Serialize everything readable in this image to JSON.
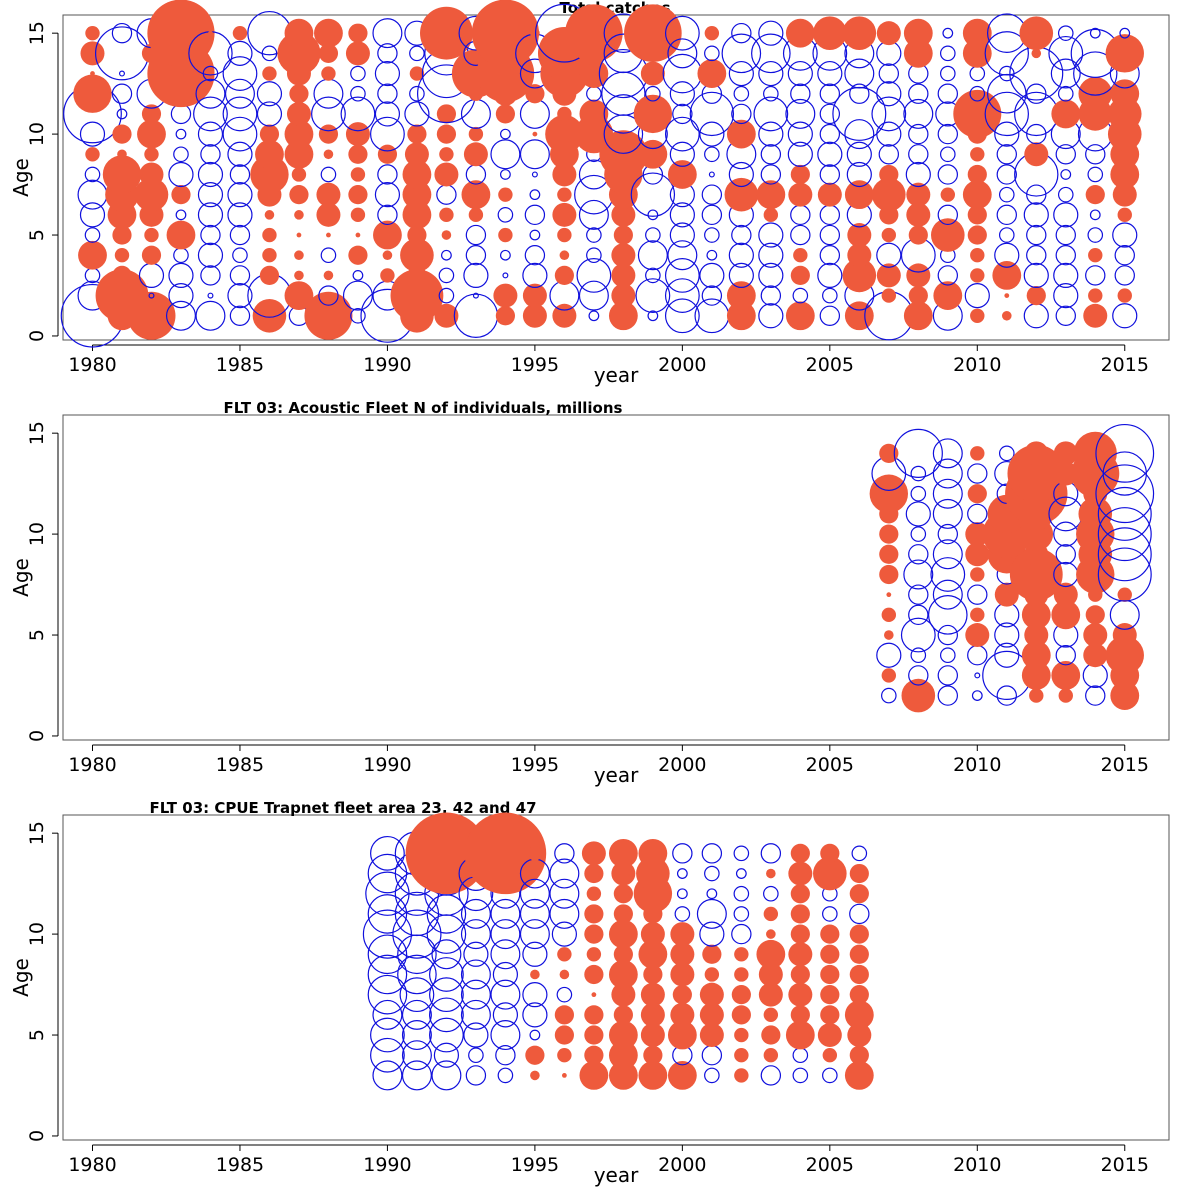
{
  "chart_data": [
    {
      "type": "bubble",
      "title": "Total catches",
      "xlabel": "year",
      "ylabel": "Age",
      "xlim": [
        1979,
        2016.5
      ],
      "ylim": [
        -0.2,
        15.9
      ],
      "xticks": [
        1980,
        1985,
        1990,
        1995,
        2000,
        2005,
        2010,
        2015
      ],
      "yticks": [
        0,
        5,
        10,
        15
      ],
      "colors": {
        "positive": "#ee5a3c",
        "negative": "#1010dd"
      },
      "encoding": "filled = positive residual, open = negative residual; size proportional to magnitude",
      "years": [
        1980,
        1981,
        1982,
        1983,
        1984,
        1985,
        1986,
        1987,
        1988,
        1989,
        1990,
        1991,
        1992,
        1993,
        1994,
        1995,
        1996,
        1997,
        1998,
        1999,
        2000,
        2001,
        2002,
        2003,
        2004,
        2005,
        2006,
        2007,
        2008,
        2009,
        2010,
        2011,
        2012,
        2013,
        2014,
        2015
      ],
      "ages": [
        1,
        2,
        3,
        4,
        5,
        6,
        7,
        8,
        9,
        10,
        11,
        12,
        13,
        14,
        15
      ],
      "residuals": [
        [
          -1.3,
          -0.6,
          -0.3,
          0.6,
          -0.3,
          -0.5,
          -0.6,
          -0.3,
          0.3,
          -0.5,
          -1.2,
          0.8,
          0.1,
          0.5,
          0.3
        ],
        [
          0.6,
          1.1,
          0.4,
          0.3,
          0.4,
          0.6,
          0.7,
          0.8,
          0.2,
          0.4,
          -0.2,
          -0.4,
          -0.1,
          -1.1,
          -0.4
        ],
        [
          1.0,
          -0.1,
          -0.5,
          0.4,
          0.3,
          0.5,
          0.7,
          0.5,
          0.3,
          0.6,
          0.4,
          -0.6,
          -0.1,
          0.4,
          -0.6
        ],
        [
          -0.6,
          -0.5,
          -0.5,
          -0.3,
          0.6,
          -0.2,
          0.4,
          -0.5,
          -0.3,
          -0.2,
          -0.4,
          -0.3,
          1.4,
          -0.3,
          1.4
        ],
        [
          -0.6,
          -0.1,
          -0.4,
          -0.5,
          -0.4,
          -0.5,
          -0.5,
          -0.5,
          -0.4,
          -0.5,
          -0.7,
          -0.6,
          -0.3,
          -0.9,
          0.1
        ],
        [
          -0.4,
          -0.5,
          -0.4,
          -0.3,
          -0.4,
          -0.5,
          -0.5,
          -0.4,
          -0.5,
          -0.7,
          -0.7,
          -0.6,
          -0.7,
          -0.5,
          0.3
        ],
        [
          0.7,
          -0.9,
          0.4,
          0.3,
          0.3,
          0.2,
          0.5,
          0.8,
          0.6,
          0.4,
          -0.5,
          -0.5,
          0.3,
          -0.3,
          -0.9
        ],
        [
          -0.4,
          0.6,
          0.2,
          0.2,
          0.1,
          0.2,
          0.4,
          0.3,
          0.6,
          0.6,
          0.5,
          0.4,
          0.5,
          0.9,
          0.6
        ],
        [
          1.0,
          -0.4,
          0.2,
          -0.3,
          0.1,
          0.5,
          0.5,
          -0.3,
          0.2,
          0.4,
          -0.7,
          -0.6,
          0.3,
          0.4,
          0.6
        ],
        [
          -0.3,
          -0.6,
          -0.2,
          0.4,
          0.1,
          0.3,
          0.4,
          0.3,
          0.4,
          0.5,
          -0.7,
          -0.3,
          -0.3,
          0.5,
          0.4
        ],
        [
          -1.1,
          -0.6,
          0.3,
          0.2,
          0.6,
          -0.4,
          -0.5,
          -0.4,
          0.4,
          -0.7,
          -0.5,
          -0.4,
          -0.5,
          -0.4,
          -0.6
        ],
        [
          0.7,
          1.1,
          0.4,
          0.7,
          0.4,
          0.6,
          0.6,
          0.6,
          0.5,
          0.4,
          -0.5,
          -0.3,
          0.3,
          -0.3,
          -0.5
        ],
        [
          0.5,
          -0.3,
          -0.3,
          -0.2,
          0.2,
          0.3,
          -0.4,
          0.5,
          0.3,
          0.4,
          0.4,
          -1.2,
          -1.0,
          -0.9,
          1.1
        ],
        [
          -0.9,
          -0.1,
          -0.5,
          -0.4,
          -0.4,
          0.3,
          0.6,
          -0.4,
          0.5,
          0.3,
          -0.6,
          0.3,
          1.0,
          -0.5,
          -0.7
        ],
        [
          0.4,
          0.5,
          -0.1,
          -0.2,
          0.3,
          -0.3,
          0.3,
          -0.2,
          -0.6,
          -0.2,
          0.4,
          0.5,
          1.2,
          -0.5,
          1.4
        ],
        [
          0.5,
          0.5,
          -0.5,
          -0.4,
          -0.2,
          -0.4,
          -0.2,
          -0.1,
          -0.6,
          0.1,
          -0.6,
          0.4,
          -0.6,
          -0.8,
          0.2
        ],
        [
          0.5,
          -0.6,
          0.4,
          0.2,
          0.3,
          0.5,
          0.3,
          0.5,
          0.6,
          0.8,
          0.3,
          0.5,
          1.0,
          1.1,
          -1.2
        ],
        [
          -0.2,
          -0.6,
          -0.7,
          -0.3,
          -0.3,
          -0.6,
          -0.8,
          -0.6,
          -0.3,
          0.8,
          0.6,
          -0.3,
          0.6,
          0.5,
          1.2
        ],
        [
          0.6,
          0.5,
          0.5,
          0.5,
          0.4,
          0.5,
          0.6,
          0.8,
          1.0,
          -0.8,
          -0.8,
          -0.9,
          -1.0,
          -0.8,
          -0.8
        ],
        [
          -0.2,
          -0.7,
          -0.3,
          -0.6,
          -0.3,
          -0.2,
          -0.9,
          -0.4,
          0.6,
          -0.6,
          0.8,
          -0.3,
          0.5,
          0.2,
          1.2
        ],
        [
          -0.7,
          -0.7,
          -0.7,
          -0.6,
          -0.5,
          -0.5,
          -0.5,
          0.6,
          -0.5,
          -0.7,
          -0.4,
          -0.5,
          -0.8,
          -0.6,
          -0.7
        ],
        [
          -0.7,
          -0.4,
          -0.5,
          -0.2,
          -0.3,
          -0.4,
          -0.4,
          -0.1,
          -0.3,
          -0.5,
          -0.9,
          -0.4,
          0.6,
          -0.3,
          0.3
        ],
        [
          0.6,
          0.6,
          -0.5,
          -0.5,
          -0.4,
          -0.5,
          0.7,
          -0.5,
          -0.6,
          0.6,
          -0.4,
          -0.3,
          -0.5,
          -0.8,
          -0.4
        ],
        [
          -0.5,
          -0.4,
          -0.5,
          -0.5,
          -0.5,
          0.3,
          0.6,
          -0.4,
          -0.4,
          -0.5,
          -0.7,
          -0.3,
          -0.5,
          -0.8,
          -0.5
        ],
        [
          0.6,
          -0.3,
          0.4,
          0.3,
          -0.4,
          -0.4,
          0.5,
          0.4,
          -0.5,
          -0.5,
          -0.6,
          -0.4,
          -0.5,
          -0.7,
          0.6
        ],
        [
          -0.4,
          -0.3,
          -0.5,
          -0.4,
          -0.4,
          -0.4,
          0.5,
          -0.4,
          -0.5,
          -0.4,
          -0.4,
          -0.4,
          -0.5,
          -0.7,
          0.7
        ],
        [
          0.6,
          -0.6,
          0.7,
          0.5,
          0.5,
          -0.5,
          0.6,
          -0.5,
          -0.5,
          -0.6,
          -1.1,
          -0.4,
          -0.6,
          -0.6,
          0.7
        ],
        [
          -1.0,
          0.3,
          0.5,
          -0.5,
          0.3,
          0.4,
          0.7,
          0.4,
          -0.4,
          -0.5,
          -0.7,
          -0.5,
          -0.4,
          -0.5,
          0.5
        ],
        [
          0.6,
          0.4,
          0.5,
          -0.7,
          0.4,
          0.5,
          0.5,
          -0.5,
          -0.4,
          -0.4,
          -0.6,
          -0.4,
          -0.4,
          0.6,
          0.6
        ],
        [
          -0.6,
          0.6,
          -0.4,
          -0.3,
          0.7,
          -0.4,
          0.3,
          -0.4,
          -0.3,
          -0.4,
          -0.5,
          -0.4,
          -0.3,
          -0.3,
          -0.2
        ],
        [
          0.3,
          -0.5,
          0.3,
          0.3,
          0.4,
          0.4,
          0.6,
          0.4,
          0.3,
          0.4,
          1.0,
          -0.3,
          -0.3,
          0.6,
          0.6
        ],
        [
          0.2,
          0.1,
          0.6,
          -0.5,
          -0.3,
          -0.4,
          -0.3,
          -0.4,
          -0.4,
          -0.5,
          -0.9,
          -0.8,
          -0.3,
          -0.9,
          -0.8
        ],
        [
          -0.5,
          0.4,
          -0.5,
          -0.4,
          -0.4,
          -0.5,
          -0.4,
          -0.9,
          0.5,
          -0.4,
          -0.9,
          -0.4,
          -1.1,
          0.2,
          0.7
        ],
        [
          -0.4,
          -0.5,
          -0.5,
          -0.4,
          -0.4,
          -0.5,
          -0.3,
          -0.2,
          -0.4,
          -0.6,
          0.6,
          -0.3,
          -0.6,
          -0.7,
          -0.3
        ],
        [
          0.5,
          0.3,
          -0.4,
          0.3,
          -0.3,
          -0.2,
          0.4,
          -0.3,
          -0.4,
          -0.7,
          0.7,
          0.7,
          -0.9,
          -1.0,
          -0.2
        ],
        [
          -0.5,
          0.3,
          -0.4,
          -0.4,
          -0.5,
          0.3,
          0.5,
          0.6,
          0.6,
          0.7,
          0.7,
          0.6,
          -0.6,
          0.8,
          -0.2
        ]
      ]
    },
    {
      "type": "bubble",
      "title": "FLT 03: Acoustic Fleet   N of individuals, millions",
      "xlabel": "year",
      "ylabel": "Age",
      "xlim": [
        1979,
        2016.5
      ],
      "ylim": [
        -0.2,
        15.9
      ],
      "xticks": [
        1980,
        1985,
        1990,
        1995,
        2000,
        2005,
        2010,
        2015
      ],
      "yticks": [
        0,
        5,
        10,
        15
      ],
      "colors": {
        "positive": "#ee5a3c",
        "negative": "#1010dd"
      },
      "years": [
        2007,
        2008,
        2009,
        2010,
        2011,
        2012,
        2013,
        2014,
        2015
      ],
      "ages": [
        2,
        3,
        4,
        5,
        6,
        7,
        8,
        9,
        10,
        11,
        12,
        13,
        14
      ],
      "residuals": [
        [
          -0.3,
          0.3,
          -0.5,
          0.2,
          0.3,
          0.1,
          0.4,
          0.4,
          0.4,
          0.4,
          0.8,
          -0.7,
          0.4
        ],
        [
          0.7,
          -0.4,
          -0.3,
          -0.7,
          -0.4,
          -0.4,
          -0.6,
          -0.4,
          -0.3,
          -0.5,
          -0.3,
          -0.3,
          -1.0
        ],
        [
          -0.4,
          -0.4,
          -0.3,
          -0.4,
          -0.8,
          -0.6,
          -0.7,
          -0.6,
          -0.4,
          -0.6,
          -0.6,
          -0.6,
          -0.6
        ],
        [
          -0.2,
          -0.1,
          -0.4,
          0.5,
          0.3,
          -0.4,
          0.3,
          0.5,
          0.5,
          -0.4,
          0.4,
          -0.4,
          0.3
        ],
        [
          -0.4,
          -1.0,
          -0.5,
          -0.5,
          -0.5,
          0.5,
          -0.4,
          0.8,
          1.0,
          0.8,
          -0.4,
          -0.5,
          -0.3
        ],
        [
          0.3,
          0.6,
          0.6,
          0.5,
          0.6,
          0.5,
          1.1,
          0.5,
          0.7,
          0.7,
          1.3,
          1.2,
          0.5
        ],
        [
          0.3,
          0.6,
          -0.4,
          -0.5,
          0.6,
          0.5,
          -0.5,
          -0.4,
          -0.5,
          -0.7,
          -0.5,
          0.5,
          0.5
        ],
        [
          -0.4,
          -0.5,
          0.5,
          0.5,
          0.4,
          0.3,
          0.8,
          0.7,
          0.8,
          0.7,
          0.5,
          1.0,
          0.9
        ],
        [
          0.6,
          0.6,
          0.8,
          0.5,
          -0.6,
          0.3,
          -1.1,
          -1.1,
          -1.1,
          -1.1,
          -1.2,
          -0.9,
          -1.2
        ]
      ]
    },
    {
      "type": "bubble",
      "title": "FLT 03: CPUE Trapnet fleet area 23, 42 and 47",
      "xlabel": "year",
      "ylabel": "Age",
      "xlim": [
        1979,
        2016.5
      ],
      "ylim": [
        -0.2,
        15.9
      ],
      "xticks": [
        1980,
        1985,
        1990,
        1995,
        2000,
        2005,
        2010,
        2015
      ],
      "yticks": [
        0,
        5,
        10,
        15
      ],
      "colors": {
        "positive": "#ee5a3c",
        "negative": "#1010dd"
      },
      "years": [
        1990,
        1991,
        1992,
        1993,
        1994,
        1995,
        1996,
        1997,
        1998,
        1999,
        2000,
        2001,
        2002,
        2003,
        2004,
        2005,
        2006
      ],
      "ages": [
        3,
        4,
        5,
        6,
        7,
        8,
        9,
        10,
        11,
        12,
        13,
        14
      ],
      "residuals": [
        [
          -0.6,
          -0.7,
          -0.7,
          -0.6,
          -0.8,
          -0.8,
          -0.8,
          -1.0,
          -0.8,
          -0.9,
          -0.8,
          -0.7
        ],
        [
          -0.6,
          -0.6,
          -0.6,
          -0.6,
          -0.7,
          -0.8,
          -0.8,
          -1.0,
          -0.9,
          -0.9,
          -0.9,
          -0.9
        ],
        [
          -0.6,
          -0.5,
          -0.7,
          -0.7,
          -0.7,
          -0.7,
          -0.6,
          -0.8,
          -0.8,
          -0.9,
          -0.9,
          1.7
        ],
        [
          -0.4,
          -0.3,
          -0.5,
          -0.6,
          -0.6,
          -0.6,
          -0.5,
          -0.6,
          -0.6,
          -0.7,
          -0.7,
          -0.4
        ],
        [
          -0.3,
          -0.4,
          -0.6,
          -0.5,
          -0.6,
          -0.5,
          -0.6,
          -0.6,
          -0.6,
          -0.6,
          -0.6,
          1.7
        ],
        [
          0.2,
          0.4,
          -0.2,
          -0.5,
          -0.5,
          0.2,
          -0.5,
          -0.6,
          -0.6,
          -0.6,
          -0.6,
          0.3
        ],
        [
          0.1,
          0.3,
          0.4,
          0.4,
          -0.3,
          0.2,
          0.3,
          -0.5,
          -0.6,
          -0.6,
          -0.6,
          -0.4
        ],
        [
          0.6,
          0.4,
          0.4,
          0.4,
          0.1,
          0.4,
          0.3,
          0.4,
          0.4,
          0.3,
          0.4,
          0.5
        ],
        [
          0.6,
          0.6,
          0.6,
          0.4,
          0.5,
          0.6,
          0.4,
          0.6,
          0.4,
          0.4,
          0.5,
          0.6
        ],
        [
          0.6,
          0.4,
          0.5,
          0.5,
          0.5,
          0.4,
          0.6,
          0.5,
          0.4,
          0.8,
          0.7,
          0.6
        ],
        [
          0.6,
          -0.4,
          0.6,
          0.5,
          0.4,
          0.5,
          0.5,
          0.5,
          -0.3,
          -0.2,
          -0.2,
          -0.4
        ],
        [
          -0.3,
          -0.4,
          0.5,
          0.5,
          0.5,
          0.3,
          0.4,
          -0.5,
          -0.6,
          -0.2,
          -0.3,
          -0.4
        ],
        [
          0.3,
          0.3,
          0.3,
          0.4,
          0.4,
          0.3,
          0.3,
          -0.4,
          -0.3,
          -0.3,
          -0.2,
          -0.3
        ],
        [
          -0.4,
          0.3,
          0.4,
          0.3,
          0.5,
          0.5,
          0.6,
          0.2,
          0.3,
          -0.3,
          0.2,
          -0.4
        ],
        [
          -0.3,
          -0.3,
          0.6,
          0.4,
          0.5,
          0.4,
          0.5,
          0.4,
          0.4,
          0.4,
          0.5,
          0.4
        ],
        [
          -0.3,
          0.3,
          0.5,
          0.4,
          0.4,
          0.4,
          0.4,
          0.4,
          -0.3,
          -0.3,
          0.7,
          0.4
        ],
        [
          0.6,
          0.4,
          0.5,
          0.6,
          0.4,
          0.4,
          0.4,
          0.4,
          -0.4,
          0.4,
          0.4,
          -0.3
        ]
      ]
    }
  ]
}
